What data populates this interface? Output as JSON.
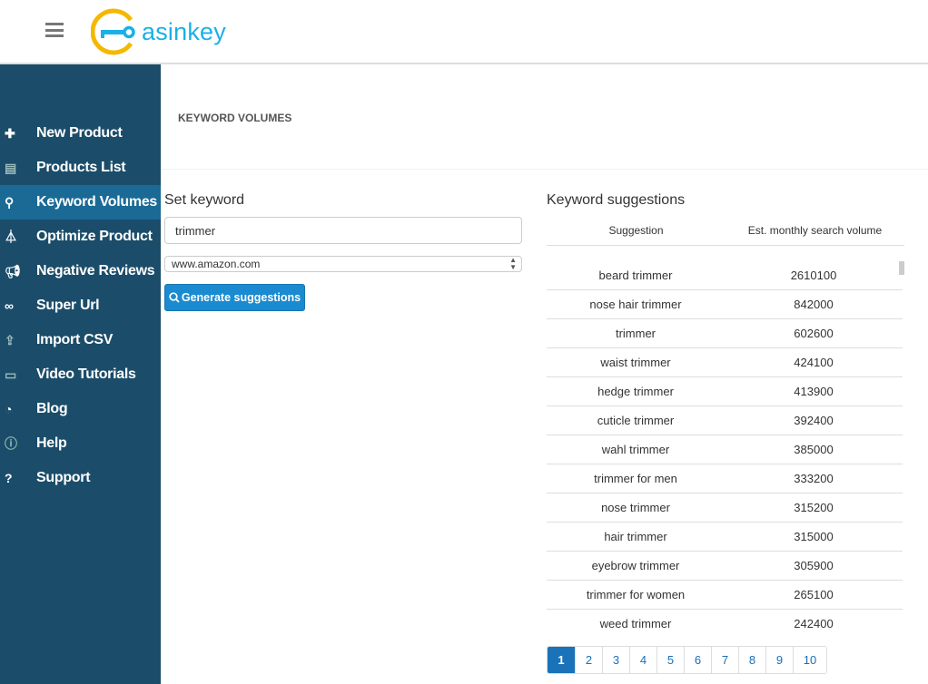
{
  "header": {
    "logo_text": "asinkey"
  },
  "sidebar": {
    "items": [
      {
        "label": "New Product",
        "icon": "plus-icon",
        "active": false
      },
      {
        "label": "Products List",
        "icon": "list-icon",
        "active": false
      },
      {
        "label": "Keyword Volumes",
        "icon": "key-icon",
        "active": true
      },
      {
        "label": "Optimize Product",
        "icon": "flask-icon",
        "active": false
      },
      {
        "label": "Negative Reviews",
        "icon": "megaphone-icon",
        "active": false
      },
      {
        "label": "Super Url",
        "icon": "link-icon",
        "active": false
      },
      {
        "label": "Import CSV",
        "icon": "upload-icon",
        "active": false
      },
      {
        "label": "Video Tutorials",
        "icon": "video-icon",
        "active": false
      },
      {
        "label": "Blog",
        "icon": "rss-icon",
        "active": false
      },
      {
        "label": "Help",
        "icon": "info-icon",
        "active": false
      },
      {
        "label": "Support",
        "icon": "question-icon",
        "active": false
      }
    ]
  },
  "main": {
    "title": "KEYWORD VOLUMES",
    "form": {
      "heading": "Set keyword",
      "keyword_value": "trimmer",
      "site_selected": "www.amazon.com",
      "generate_label": "Generate suggestions"
    },
    "suggestions": {
      "heading": "Keyword suggestions",
      "columns": [
        "Suggestion",
        "Est. monthly search volume"
      ],
      "rows": [
        [
          "beard trimmer",
          "2610100"
        ],
        [
          "nose hair trimmer",
          "842000"
        ],
        [
          "trimmer",
          "602600"
        ],
        [
          "waist trimmer",
          "424100"
        ],
        [
          "hedge trimmer",
          "413900"
        ],
        [
          "cuticle trimmer",
          "392400"
        ],
        [
          "wahl trimmer",
          "385000"
        ],
        [
          "trimmer for men",
          "333200"
        ],
        [
          "nose trimmer",
          "315200"
        ],
        [
          "hair trimmer",
          "315000"
        ],
        [
          "eyebrow trimmer",
          "305900"
        ],
        [
          "trimmer for women",
          "265100"
        ],
        [
          "weed trimmer",
          "242400"
        ]
      ],
      "pages": [
        "1",
        "2",
        "3",
        "4",
        "5",
        "6",
        "7",
        "8",
        "9",
        "10"
      ],
      "current_page": "1"
    }
  },
  "colors": {
    "sidebar": "#1b4d6a",
    "sidebar_active": "#1b6a95",
    "accent": "#1a8bd0",
    "logo_blue": "#1ab0e8",
    "logo_ring": "#f5b800"
  }
}
